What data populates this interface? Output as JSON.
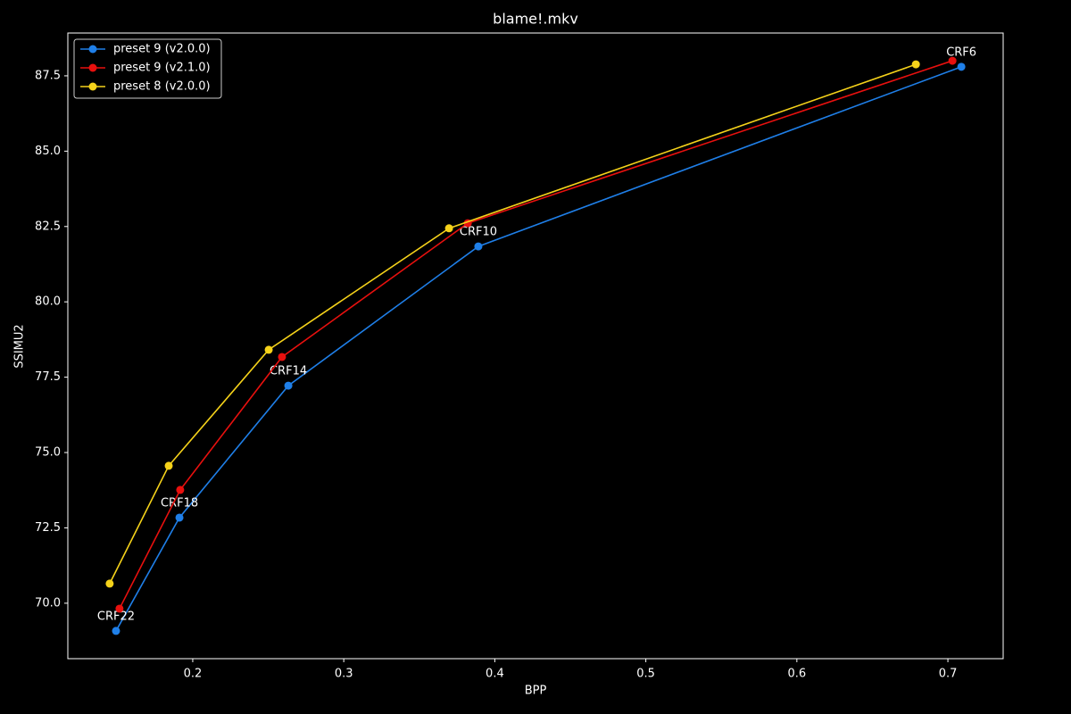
{
  "chart_data": {
    "type": "line",
    "title": "blame!.mkv",
    "xlabel": "BPP",
    "ylabel": "SSIMU2",
    "xlim": [
      0.1173,
      0.7366
    ],
    "ylim": [
      68.16,
      88.92
    ],
    "xticks": [
      0.2,
      0.3,
      0.4,
      0.5,
      0.6,
      0.7
    ],
    "yticks": [
      {
        "value": 70,
        "label": "70.0"
      },
      {
        "value": 72.5,
        "label": "72.5"
      },
      {
        "value": 75,
        "label": "75.0"
      },
      {
        "value": 77.5,
        "label": "77.5"
      },
      {
        "value": 80,
        "label": "80.0"
      },
      {
        "value": 82.5,
        "label": "82.5"
      },
      {
        "value": 85,
        "label": "85.0"
      },
      {
        "value": 87.5,
        "label": "87.5"
      }
    ],
    "legend": "upper left",
    "series": [
      {
        "name": "preset 9 (v2.0.0)",
        "color": "#1f7fe8",
        "x": [
          0.1492,
          0.1912,
          0.2633,
          0.3891,
          0.7089
        ],
        "values": [
          69.08,
          72.84,
          77.22,
          81.84,
          87.8
        ],
        "point_labels": [
          "CRF22",
          "CRF18",
          "CRF14",
          "CRF10",
          "CRF6"
        ]
      },
      {
        "name": "preset 9 (v2.1.0)",
        "color": "#e8100e",
        "x": [
          0.1515,
          0.1917,
          0.2591,
          0.3821,
          0.703
        ],
        "values": [
          69.82,
          73.76,
          78.17,
          82.61,
          88.0
        ]
      },
      {
        "name": "preset 8 (v2.0.0)",
        "color": "#f5d21a",
        "x": [
          0.145,
          0.1841,
          0.2503,
          0.3697,
          0.6788
        ],
        "values": [
          70.65,
          74.56,
          78.41,
          82.44,
          87.88
        ]
      }
    ]
  }
}
